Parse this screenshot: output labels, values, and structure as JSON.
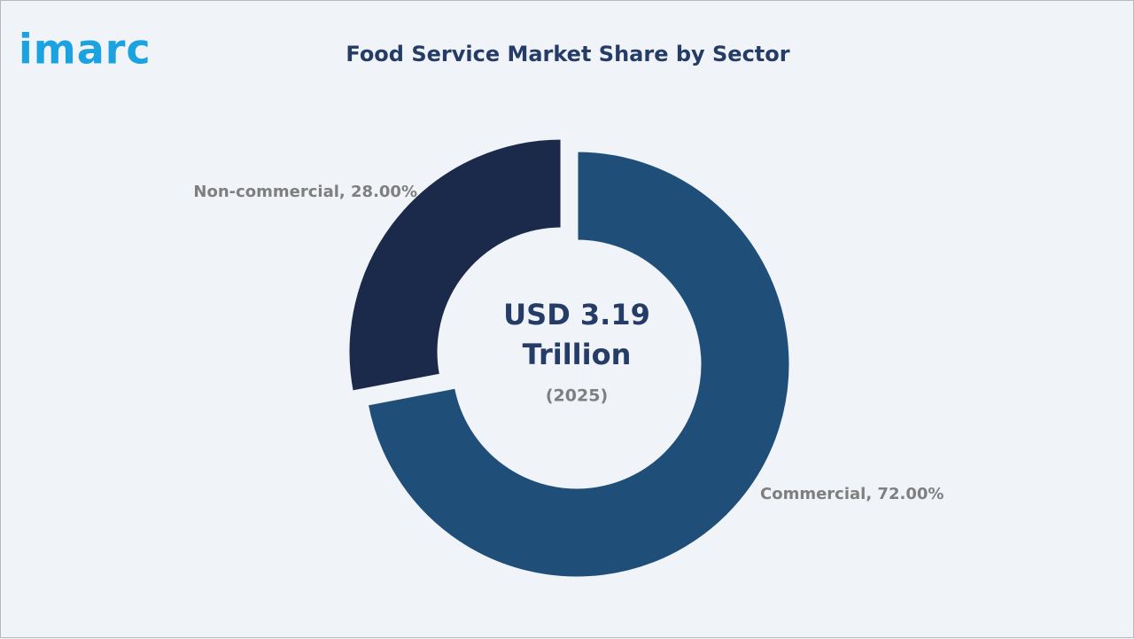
{
  "logo": "imarc",
  "chart_data": {
    "type": "donut",
    "title": "Food Service Market Share by Sector",
    "values": [
      72,
      28
    ],
    "value_labels": [
      "Commercial, 72.00%",
      "Non-commercial, 28.00%"
    ],
    "colors": [
      "#1f4e79",
      "#1b2a4a"
    ],
    "center_text": [
      "USD 3.19",
      "Trillion"
    ],
    "center_subtext": "(2025)"
  }
}
